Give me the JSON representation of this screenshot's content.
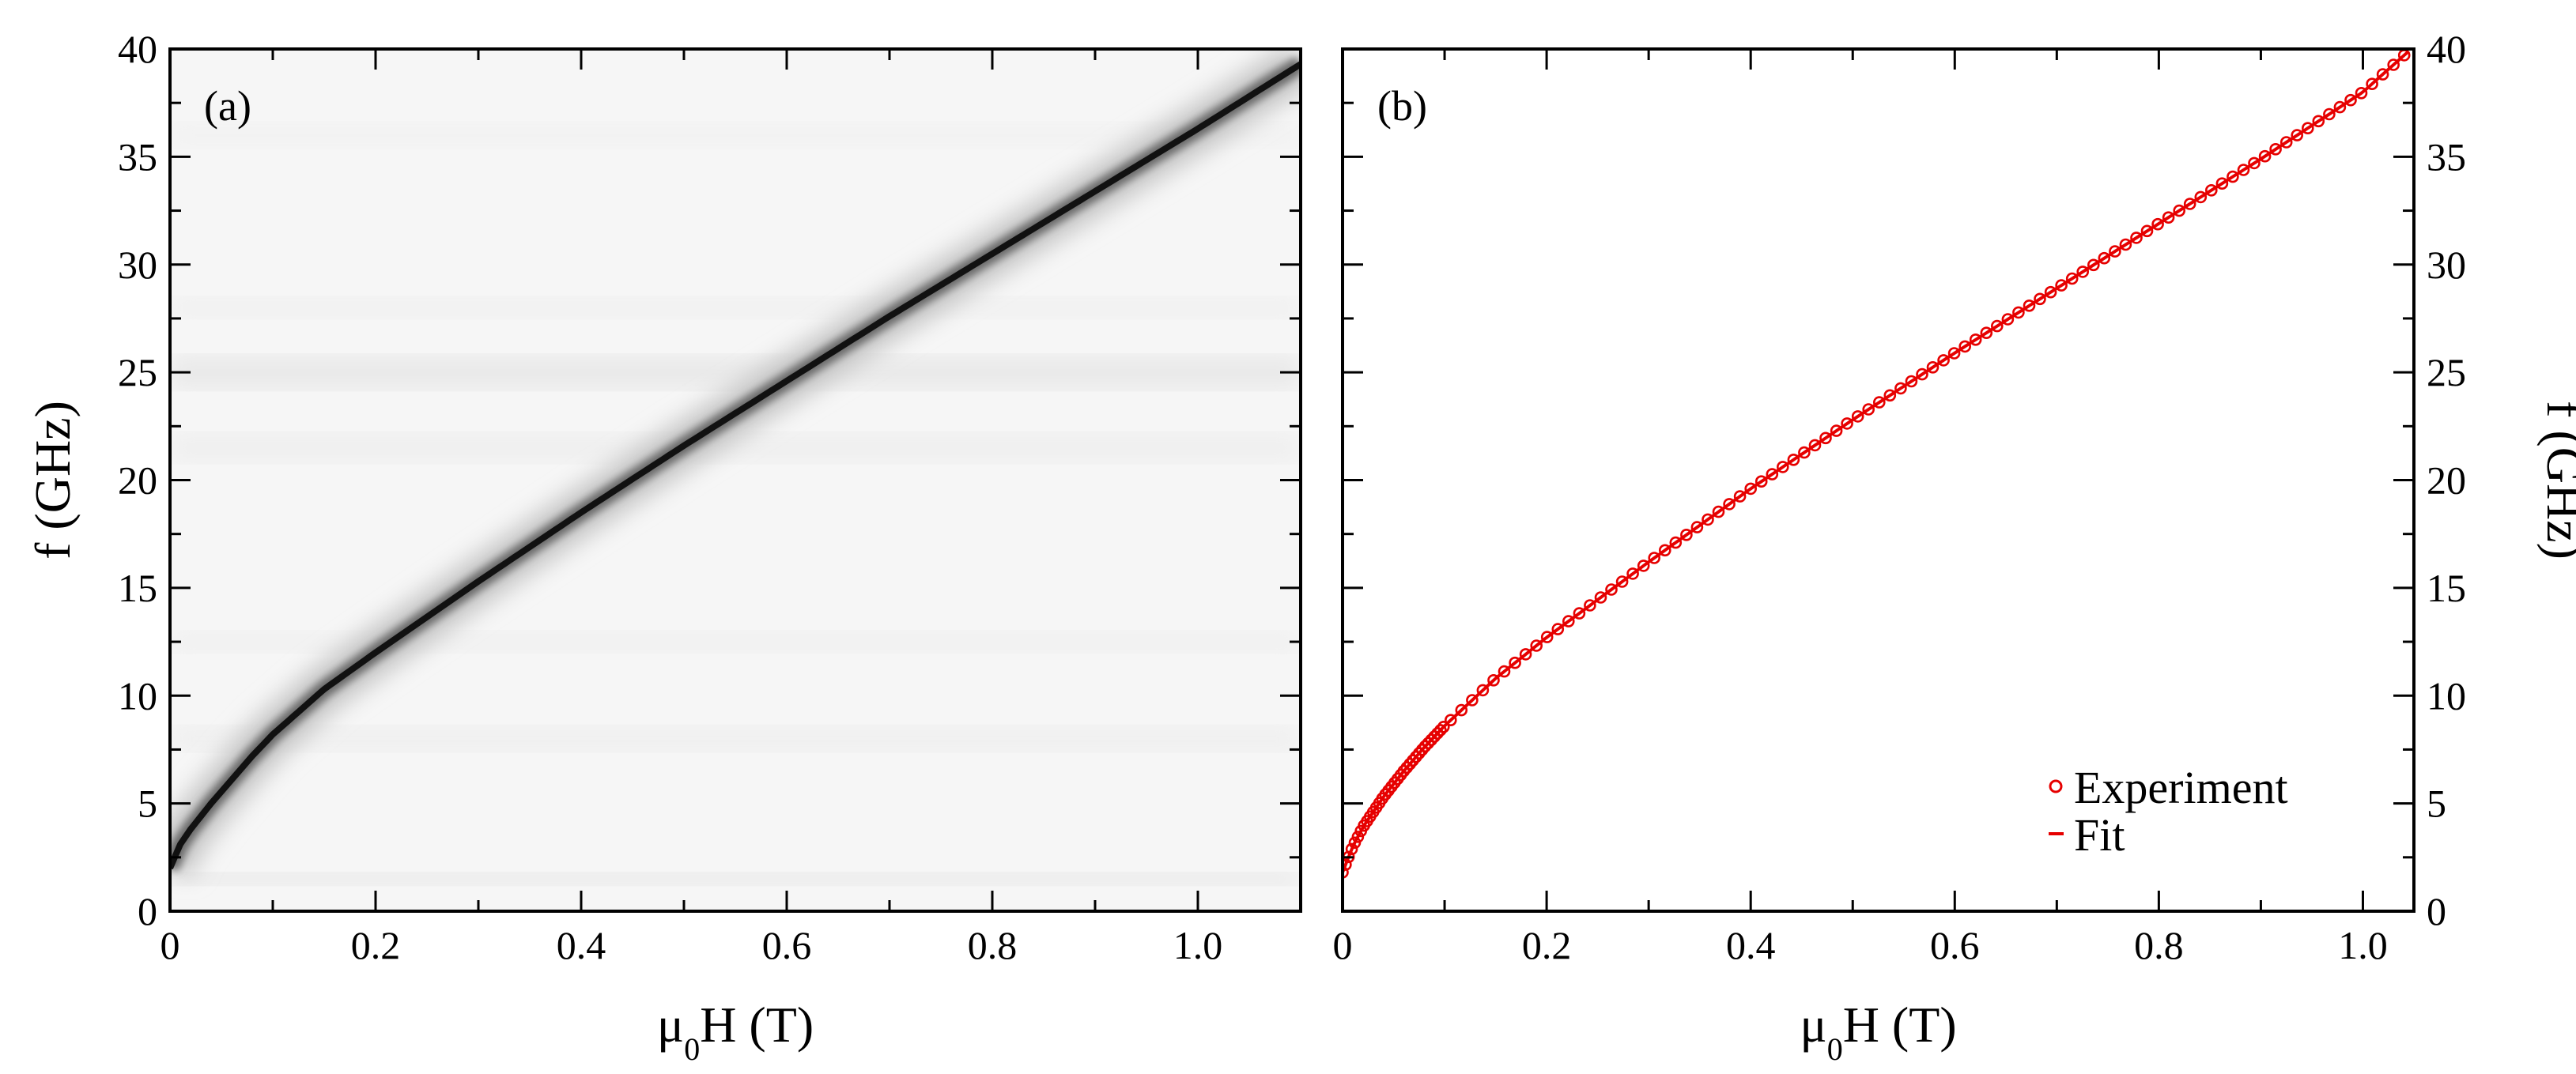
{
  "chart_data": [
    {
      "panel": "(a)",
      "type": "heatmap",
      "title": "",
      "xlabel_main": "μ",
      "xlabel_sub": "0",
      "xlabel_rest": "H (T)",
      "ylabel": "f (GHz)",
      "xlim": [
        0,
        1.1
      ],
      "ylim": [
        0,
        40
      ],
      "xticks": [
        0,
        0.2,
        0.4,
        0.6,
        0.8,
        1.0
      ],
      "xtick_labels": [
        "0",
        "0.2",
        "0.4",
        "0.6",
        "0.8",
        "1.0"
      ],
      "yticks": [
        0,
        5,
        10,
        15,
        20,
        25,
        30,
        35,
        40
      ],
      "ytick_labels": [
        "0",
        "5",
        "10",
        "15",
        "20",
        "25",
        "30",
        "35",
        "40"
      ],
      "colormap": "grayscale (white = low, black = high absorption)",
      "resonance_ridge": {
        "x": [
          0.0,
          0.01,
          0.02,
          0.04,
          0.06,
          0.08,
          0.1,
          0.15,
          0.2,
          0.3,
          0.4,
          0.5,
          0.6,
          0.7,
          0.8,
          0.9,
          1.0,
          1.1
        ],
        "y": [
          2.0,
          3.1,
          3.8,
          5.0,
          6.1,
          7.2,
          8.2,
          10.3,
          12.0,
          15.3,
          18.5,
          21.6,
          24.6,
          27.6,
          30.5,
          33.4,
          36.3,
          39.3
        ]
      }
    },
    {
      "panel": "(b)",
      "type": "scatter",
      "title": "",
      "xlabel_main": "μ",
      "xlabel_sub": "0",
      "xlabel_rest": "H (T)",
      "ylabel": "f (GHz)",
      "xlim": [
        0,
        1.05
      ],
      "ylim": [
        0,
        40
      ],
      "xticks": [
        0,
        0.2,
        0.4,
        0.6,
        0.8,
        1.0
      ],
      "xtick_labels": [
        "0",
        "0.2",
        "0.4",
        "0.6",
        "0.8",
        "1.0"
      ],
      "yticks": [
        0,
        5,
        10,
        15,
        20,
        25,
        30,
        35,
        40
      ],
      "ytick_labels": [
        "0",
        "5",
        "10",
        "15",
        "20",
        "25",
        "30",
        "35",
        "40"
      ],
      "legend": [
        "Experiment",
        "Fit"
      ],
      "legend_position": "bottom-right",
      "series": [
        {
          "name": "Experiment",
          "marker": "open-circle",
          "color": "#e60000",
          "x": [
            0.0,
            0.01,
            0.02,
            0.03,
            0.04,
            0.05,
            0.06,
            0.08,
            0.1,
            0.15,
            0.2,
            0.3,
            0.4,
            0.5,
            0.6,
            0.7,
            0.8,
            0.9,
            1.0,
            1.045
          ],
          "y": [
            1.8,
            3.0,
            3.9,
            4.6,
            5.3,
            5.9,
            6.5,
            7.6,
            8.6,
            10.8,
            12.7,
            16.2,
            19.6,
            22.8,
            25.9,
            28.9,
            31.9,
            34.9,
            38.0,
            39.9
          ]
        },
        {
          "name": "Fit",
          "marker": "line",
          "color": "#e60000",
          "x": [
            0.0,
            0.01,
            0.02,
            0.03,
            0.04,
            0.05,
            0.06,
            0.08,
            0.1,
            0.15,
            0.2,
            0.3,
            0.4,
            0.5,
            0.6,
            0.7,
            0.8,
            0.9,
            1.0,
            1.045
          ],
          "y": [
            1.8,
            3.0,
            3.9,
            4.6,
            5.3,
            5.9,
            6.5,
            7.6,
            8.6,
            10.8,
            12.7,
            16.2,
            19.6,
            22.8,
            25.9,
            28.9,
            31.9,
            34.9,
            38.0,
            39.9
          ]
        }
      ]
    }
  ]
}
